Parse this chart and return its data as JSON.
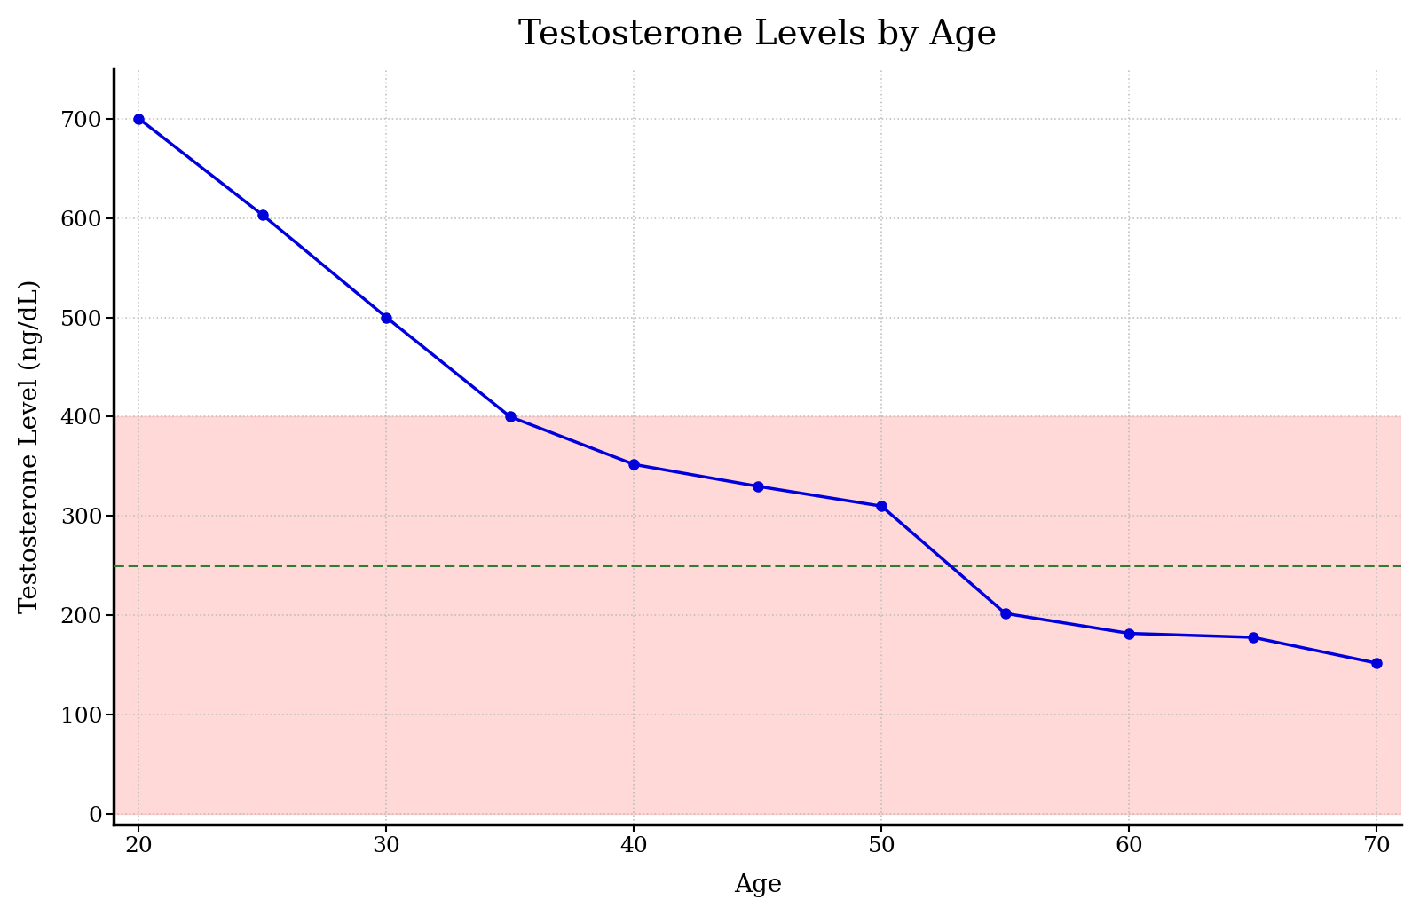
{
  "title": "Testosterone Levels by Age",
  "xlabel": "Age",
  "ylabel": "Testosterone Level (ng/dL)",
  "ages": [
    20,
    25,
    30,
    35,
    40,
    45,
    50,
    55,
    60,
    65,
    70
  ],
  "testosterone": [
    700,
    603,
    500,
    400,
    352,
    330,
    310,
    202,
    182,
    178,
    152
  ],
  "line_color": "#0000dd",
  "marker_color": "#0000dd",
  "marker_style": "o",
  "marker_size": 8,
  "line_width": 2.5,
  "shaded_ymin": 0,
  "shaded_ymax": 400,
  "shade_color": "#ffaaaa",
  "shade_alpha": 0.45,
  "threshold_y": 250,
  "threshold_color": "#2e7d32",
  "threshold_linestyle": "--",
  "threshold_linewidth": 2.2,
  "xlim": [
    19,
    71
  ],
  "ylim": [
    -10,
    750
  ],
  "xticks": [
    20,
    30,
    40,
    50,
    60,
    70
  ],
  "yticks": [
    0,
    100,
    200,
    300,
    400,
    500,
    600,
    700
  ],
  "grid_color": "#bbbbbb",
  "grid_linestyle": ":",
  "grid_alpha": 0.9,
  "grid_linewidth": 1.2,
  "title_fontsize": 28,
  "label_fontsize": 20,
  "tick_fontsize": 18,
  "background_color": "#ffffff",
  "spine_color": "#000000",
  "spine_linewidth": 2.5
}
